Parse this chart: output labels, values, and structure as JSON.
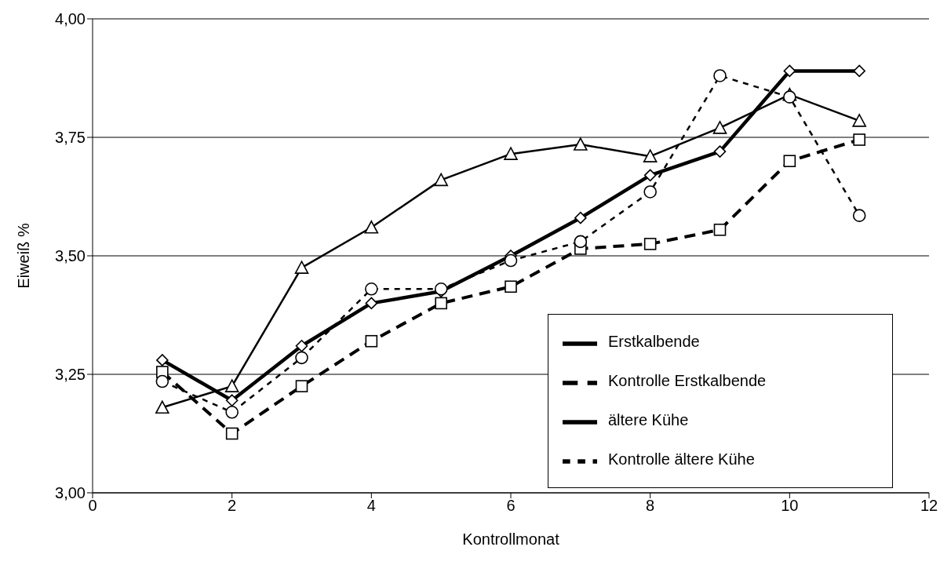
{
  "chart_data": {
    "type": "line",
    "xlabel": "Kontrollmonat",
    "ylabel": "Eiweiß %",
    "x": [
      1,
      2,
      3,
      4,
      5,
      6,
      7,
      8,
      9,
      10,
      11
    ],
    "xlim": [
      0,
      12
    ],
    "xticks": [
      0,
      2,
      4,
      6,
      8,
      10,
      12
    ],
    "ylim": [
      3,
      4
    ],
    "yticks": [
      {
        "value": 3,
        "label": "3,00"
      },
      {
        "value": 3.25,
        "label": "3,25"
      },
      {
        "value": 3.5,
        "label": "3,50"
      },
      {
        "value": 3.75,
        "label": "3,75"
      },
      {
        "value": 4,
        "label": "4,00"
      }
    ],
    "grid": "y",
    "legend": "bottom right",
    "series": [
      {
        "name": "Erstkalbende",
        "color": "#000000",
        "marker": "diamond",
        "line_style": "solid",
        "values": [
          3.28,
          3.195,
          3.31,
          3.4,
          3.425,
          3.5,
          3.58,
          3.67,
          3.72,
          3.89,
          3.89
        ]
      },
      {
        "name": "Kontrolle Erstkalbende",
        "color": "#000000",
        "marker": "square",
        "line_style": "dashed",
        "values": [
          3.255,
          3.125,
          3.225,
          3.32,
          3.4,
          3.435,
          3.515,
          3.525,
          3.555,
          3.7,
          3.745
        ]
      },
      {
        "name": "ältere Kühe",
        "color": "#000000",
        "marker": "triangle",
        "line_style": "solid",
        "values": [
          3.18,
          3.225,
          3.475,
          3.56,
          3.66,
          3.715,
          3.735,
          3.71,
          3.77,
          3.84,
          3.785
        ]
      },
      {
        "name": "Kontrolle ältere Kühe",
        "color": "#000000",
        "marker": "circle",
        "line_style": "dotted",
        "values": [
          3.235,
          3.17,
          3.285,
          3.43,
          3.43,
          3.49,
          3.53,
          3.635,
          3.88,
          3.835,
          3.585
        ]
      }
    ]
  }
}
